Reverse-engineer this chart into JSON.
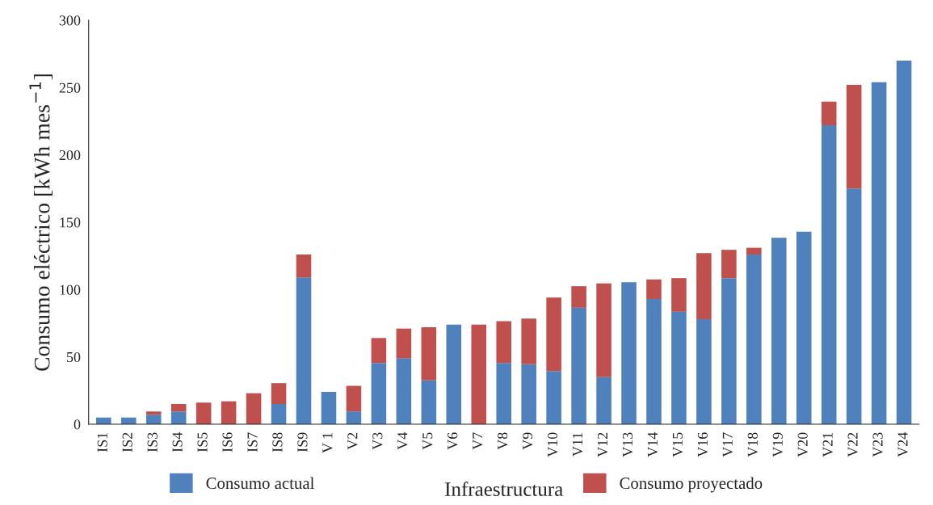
{
  "chart_data": {
    "type": "bar",
    "stacked": true,
    "xlabel": "Infraestructura",
    "ylabel": "Consumo eléctrico [kWh mes$^{−1}$]",
    "categories": [
      "IS1",
      "IS2",
      "IS3",
      "IS4",
      "IS5",
      "IS6",
      "IS7",
      "IS8",
      "IS9",
      "V 1",
      "V2",
      "V3",
      "V4",
      "V5",
      "V6",
      "V7",
      "V8",
      "V9",
      "V10",
      "V11",
      "V12",
      "V13",
      "V14",
      "V15",
      "V16",
      "V17",
      "V18",
      "V19",
      "V20",
      "V21",
      "V22",
      "V23",
      "V24"
    ],
    "series": [
      {
        "name": "Consumo actual",
        "color": "#4f81bd",
        "values": [
          5,
          5,
          7,
          9.5,
          0,
          0,
          0,
          15,
          109,
          24,
          9.5,
          45.5,
          49,
          32.5,
          74,
          0,
          45.5,
          44.5,
          39.5,
          86.5,
          35,
          105.5,
          93,
          83.5,
          78,
          108.5,
          126,
          138.5,
          143,
          222,
          175,
          254,
          270
        ]
      },
      {
        "name": "Consumo proyectado",
        "color": "#c0504d",
        "values": [
          0,
          0,
          2.5,
          5.5,
          16,
          17,
          23,
          15.5,
          17,
          0,
          19,
          18.5,
          22,
          39.5,
          0,
          74,
          31,
          34,
          54.5,
          16,
          69.5,
          0,
          14.5,
          25,
          49,
          21,
          5,
          0,
          0,
          17.5,
          77,
          0,
          0
        ]
      }
    ],
    "ylim": [
      0,
      300
    ],
    "yticks": [
      0,
      50,
      100,
      150,
      200,
      250,
      300
    ],
    "grid": false,
    "legend": "bottom"
  }
}
